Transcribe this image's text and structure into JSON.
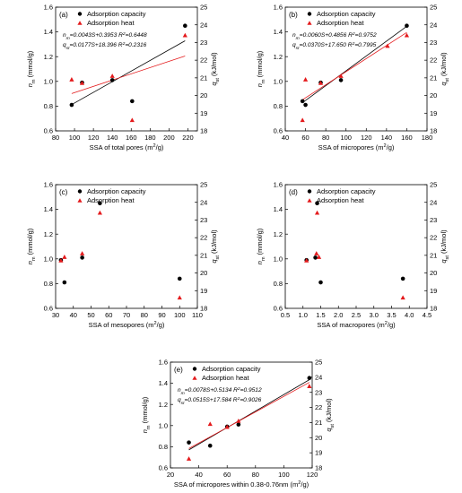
{
  "colors": {
    "capacity": "#000000",
    "heat": "#e41a1c",
    "fit_capacity": "#000000",
    "fit_heat": "#e41a1c"
  },
  "legend": {
    "capacity": "Adsorption capacity",
    "heat": "Adsorption heat"
  },
  "y_left_label": "n_m (mmol/g)",
  "y_right_label": "q_st (kJ/mol)",
  "chart_data": [
    {
      "panel": "(a)",
      "type": "scatter",
      "xlabel": "SSA of total pores (m²/g)",
      "xlim": [
        80,
        230
      ],
      "xticks": [
        80,
        100,
        120,
        140,
        160,
        180,
        200,
        220
      ],
      "ylim": [
        0.6,
        1.6
      ],
      "yticks": [
        0.6,
        0.8,
        1.0,
        1.2,
        1.4,
        1.6
      ],
      "y2lim": [
        18,
        25
      ],
      "y2ticks": [
        18,
        19,
        20,
        21,
        22,
        23,
        24,
        25
      ],
      "legend_position": "top-left",
      "equations": [
        "n_m=0.0043S+0.3953  R²=0.6448",
        "q_st=0.0177S+18.396  R²=0.2316"
      ],
      "fit_capacity": {
        "slope": 0.0043,
        "intercept": 0.3953,
        "x_range": [
          97,
          217
        ]
      },
      "fit_heat": {
        "slope": 0.0177,
        "intercept": 18.396,
        "x_range": [
          97,
          217
        ]
      },
      "capacity": [
        {
          "x": 97,
          "y": 0.81
        },
        {
          "x": 108,
          "y": 0.99
        },
        {
          "x": 140,
          "y": 1.01
        },
        {
          "x": 161,
          "y": 0.84
        },
        {
          "x": 217,
          "y": 1.45
        }
      ],
      "heat": [
        {
          "x": 97,
          "y": 20.9
        },
        {
          "x": 108,
          "y": 20.7
        },
        {
          "x": 140,
          "y": 21.1
        },
        {
          "x": 161,
          "y": 18.6
        },
        {
          "x": 217,
          "y": 23.4
        }
      ]
    },
    {
      "panel": "(b)",
      "type": "scatter",
      "xlabel": "SSA of micropores (m²/g)",
      "xlim": [
        40,
        180
      ],
      "xticks": [
        40,
        60,
        80,
        100,
        120,
        140,
        160,
        180
      ],
      "ylim": [
        0.6,
        1.6
      ],
      "yticks": [
        0.6,
        0.8,
        1.0,
        1.2,
        1.4,
        1.6
      ],
      "y2lim": [
        18,
        25
      ],
      "y2ticks": [
        18,
        19,
        20,
        21,
        22,
        23,
        24,
        25
      ],
      "legend_position": "top-left",
      "equations": [
        "n_m=0.0060S+0.4856  R²=0.9752",
        "q_st=0.0370S+17.650  R²=0.7995"
      ],
      "fit_capacity": {
        "slope": 0.006,
        "intercept": 0.4856,
        "x_range": [
          57,
          160
        ]
      },
      "fit_heat": {
        "slope": 0.037,
        "intercept": 17.65,
        "x_range": [
          57,
          160
        ]
      },
      "capacity": [
        {
          "x": 57,
          "y": 0.84
        },
        {
          "x": 60,
          "y": 0.81
        },
        {
          "x": 75,
          "y": 0.99
        },
        {
          "x": 95,
          "y": 1.01
        },
        {
          "x": 160,
          "y": 1.45
        }
      ],
      "heat": [
        {
          "x": 57,
          "y": 18.6
        },
        {
          "x": 60,
          "y": 20.9
        },
        {
          "x": 75,
          "y": 20.7
        },
        {
          "x": 95,
          "y": 21.1
        },
        {
          "x": 141,
          "y": 22.8
        },
        {
          "x": 160,
          "y": 23.4
        }
      ]
    },
    {
      "panel": "(c)",
      "type": "scatter",
      "xlabel": "SSA of mesopores (m²/g)",
      "xlim": [
        30,
        110
      ],
      "xticks": [
        30,
        40,
        50,
        60,
        70,
        80,
        90,
        100,
        110
      ],
      "ylim": [
        0.6,
        1.6
      ],
      "yticks": [
        0.6,
        0.8,
        1.0,
        1.2,
        1.4,
        1.6
      ],
      "y2lim": [
        18,
        25
      ],
      "y2ticks": [
        18,
        19,
        20,
        21,
        22,
        23,
        24,
        25
      ],
      "legend_position": "top-left",
      "capacity": [
        {
          "x": 33,
          "y": 0.99
        },
        {
          "x": 35,
          "y": 0.81
        },
        {
          "x": 45,
          "y": 1.01
        },
        {
          "x": 55,
          "y": 1.45
        },
        {
          "x": 100,
          "y": 0.84
        }
      ],
      "heat": [
        {
          "x": 33,
          "y": 20.7
        },
        {
          "x": 35,
          "y": 20.9
        },
        {
          "x": 45,
          "y": 21.1
        },
        {
          "x": 55,
          "y": 23.4
        },
        {
          "x": 100,
          "y": 18.6
        }
      ]
    },
    {
      "panel": "(d)",
      "type": "scatter",
      "xlabel": "SSA of macropores (m²/g)",
      "xlim": [
        0.5,
        4.5
      ],
      "xticks": [
        0.5,
        1.0,
        1.5,
        2.0,
        2.5,
        3.0,
        3.5,
        4.0,
        4.5
      ],
      "ylim": [
        0.6,
        1.6
      ],
      "yticks": [
        0.6,
        0.8,
        1.0,
        1.2,
        1.4,
        1.6
      ],
      "y2lim": [
        18,
        25
      ],
      "y2ticks": [
        18,
        19,
        20,
        21,
        22,
        23,
        24,
        25
      ],
      "legend_position": "top-left",
      "capacity": [
        {
          "x": 1.1,
          "y": 0.99
        },
        {
          "x": 1.35,
          "y": 1.01
        },
        {
          "x": 1.4,
          "y": 1.45
        },
        {
          "x": 1.5,
          "y": 0.81
        },
        {
          "x": 3.82,
          "y": 0.84
        }
      ],
      "heat": [
        {
          "x": 1.1,
          "y": 20.7
        },
        {
          "x": 1.38,
          "y": 21.1
        },
        {
          "x": 1.4,
          "y": 23.4
        },
        {
          "x": 1.45,
          "y": 20.9
        },
        {
          "x": 3.82,
          "y": 18.6
        }
      ]
    },
    {
      "panel": "(e)",
      "type": "scatter",
      "xlabel": "SSA of micropores within 0.38-0.76nm (m²/g)",
      "xlim": [
        20,
        120
      ],
      "xticks": [
        20,
        40,
        60,
        80,
        100,
        120
      ],
      "ylim": [
        0.6,
        1.6
      ],
      "yticks": [
        0.6,
        0.8,
        1.0,
        1.2,
        1.4,
        1.6
      ],
      "y2lim": [
        18,
        25
      ],
      "y2ticks": [
        18,
        19,
        20,
        21,
        22,
        23,
        24,
        25
      ],
      "legend_position": "top-left",
      "equations": [
        "n_m=0.0078S+0.5134  R²=0.9512",
        "q_st=0.0515S+17.584  R²=0.9026"
      ],
      "fit_capacity": {
        "slope": 0.0078,
        "intercept": 0.5134,
        "x_range": [
          33,
          118
        ]
      },
      "fit_heat": {
        "slope": 0.0515,
        "intercept": 17.584,
        "x_range": [
          33,
          118
        ]
      },
      "capacity": [
        {
          "x": 33,
          "y": 0.84
        },
        {
          "x": 48,
          "y": 0.81
        },
        {
          "x": 60,
          "y": 0.99
        },
        {
          "x": 68,
          "y": 1.01
        },
        {
          "x": 118,
          "y": 1.45
        }
      ],
      "heat": [
        {
          "x": 33,
          "y": 18.6
        },
        {
          "x": 48,
          "y": 20.9
        },
        {
          "x": 60,
          "y": 20.7
        },
        {
          "x": 68,
          "y": 21.1
        },
        {
          "x": 118,
          "y": 23.4
        }
      ]
    }
  ]
}
